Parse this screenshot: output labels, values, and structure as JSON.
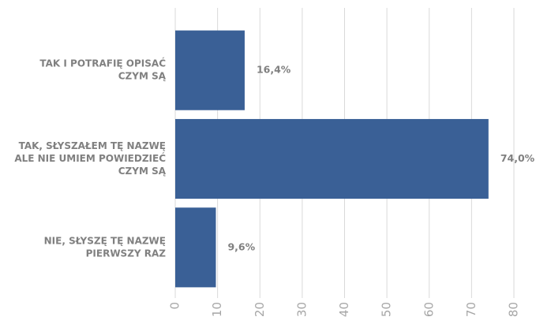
{
  "chart_data": {
    "type": "bar",
    "orientation": "horizontal",
    "categories": [
      [
        "TAK I POTRAFIĘ OPISAĆ",
        "CZYM SĄ"
      ],
      [
        "TAK, SŁYSZAŁEM TĘ NAZWĘ",
        "ALE NIE UMIEM POWIEDZIEĆ",
        "CZYM SĄ"
      ],
      [
        "NIE, SŁYSZĘ TĘ NAZWĘ",
        "PIERWSZY RAZ"
      ]
    ],
    "values": [
      16.4,
      74.0,
      9.6
    ],
    "value_labels": [
      "16,4%",
      "74,0%",
      "9,6%"
    ],
    "color": "#3a6096",
    "xlim": [
      0,
      80
    ],
    "xticks": [
      0,
      10,
      20,
      30,
      40,
      50,
      60,
      70,
      80
    ],
    "grid": true
  }
}
